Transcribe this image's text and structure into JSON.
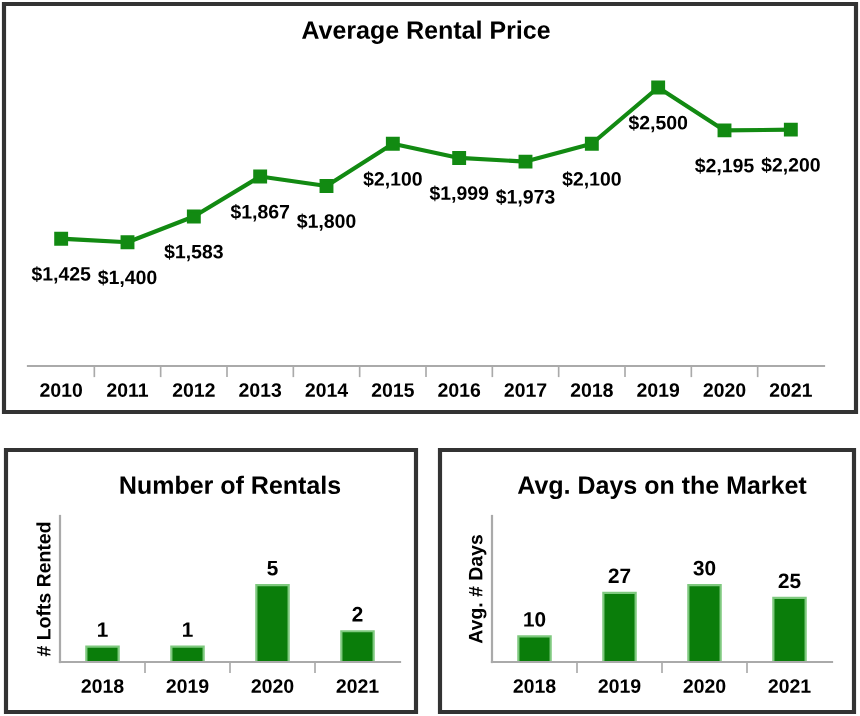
{
  "chart_data": [
    {
      "type": "line",
      "title": "Average Rental Price",
      "categories": [
        "2010",
        "2011",
        "2012",
        "2013",
        "2014",
        "2015",
        "2016",
        "2017",
        "2018",
        "2019",
        "2020",
        "2021"
      ],
      "values": [
        1425,
        1400,
        1583,
        1867,
        1800,
        2100,
        1999,
        1973,
        2100,
        2500,
        2195,
        2200
      ],
      "value_labels": [
        "$1,425",
        "$1,400",
        "$1,583",
        "$1,867",
        "$1,800",
        "$2,100",
        "$1,999",
        "$1,973",
        "$2,100",
        "$2,500",
        "$2,195",
        "$2,200"
      ],
      "color": "#128a12",
      "marker": "square",
      "grid": false
    },
    {
      "type": "bar",
      "title": "Number of Rentals",
      "ylabel": "# Lofts Rented",
      "categories": [
        "2018",
        "2019",
        "2020",
        "2021"
      ],
      "values": [
        1,
        1,
        5,
        2
      ],
      "color": "#0a7d0a",
      "data_labels": true,
      "grid": false
    },
    {
      "type": "bar",
      "title": "Avg. Days on the Market",
      "ylabel": "Avg. # Days",
      "categories": [
        "2018",
        "2019",
        "2020",
        "2021"
      ],
      "values": [
        10,
        27,
        30,
        25
      ],
      "color": "#0a7d0a",
      "data_labels": true,
      "grid": false
    }
  ]
}
